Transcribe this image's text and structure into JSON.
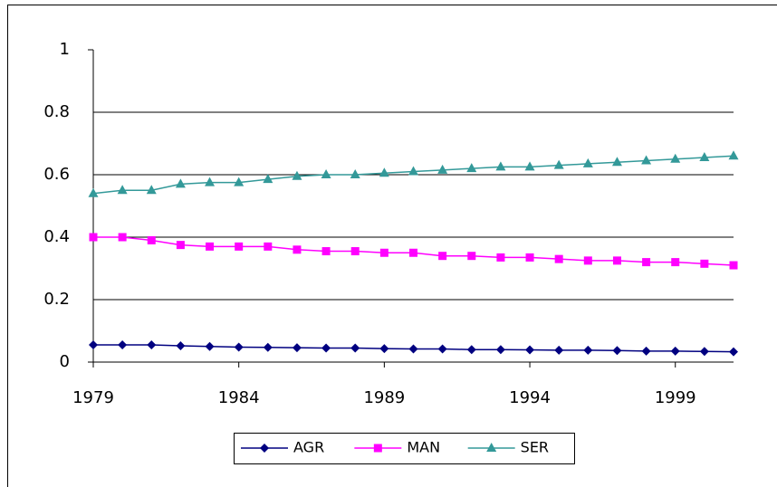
{
  "chart_data": {
    "type": "line",
    "x": [
      1979,
      1980,
      1981,
      1982,
      1983,
      1984,
      1985,
      1986,
      1987,
      1988,
      1989,
      1990,
      1991,
      1992,
      1993,
      1994,
      1995,
      1996,
      1997,
      1998,
      1999,
      2000,
      2001
    ],
    "series": [
      {
        "name": "AGR",
        "color": "#000080",
        "marker": "diamond",
        "values": [
          0.055,
          0.055,
          0.055,
          0.052,
          0.05,
          0.048,
          0.047,
          0.046,
          0.045,
          0.045,
          0.043,
          0.042,
          0.042,
          0.04,
          0.04,
          0.039,
          0.038,
          0.038,
          0.037,
          0.035,
          0.035,
          0.034,
          0.033
        ]
      },
      {
        "name": "MAN",
        "color": "#ff00ff",
        "marker": "square",
        "values": [
          0.4,
          0.4,
          0.39,
          0.375,
          0.37,
          0.37,
          0.37,
          0.36,
          0.355,
          0.355,
          0.35,
          0.35,
          0.34,
          0.34,
          0.335,
          0.335,
          0.33,
          0.325,
          0.325,
          0.32,
          0.32,
          0.315,
          0.31
        ]
      },
      {
        "name": "SER",
        "color": "#339999",
        "marker": "triangle",
        "values": [
          0.54,
          0.55,
          0.55,
          0.57,
          0.575,
          0.575,
          0.585,
          0.595,
          0.6,
          0.6,
          0.605,
          0.61,
          0.615,
          0.62,
          0.625,
          0.625,
          0.63,
          0.635,
          0.64,
          0.645,
          0.65,
          0.655,
          0.66
        ]
      }
    ],
    "xlim": [
      1979,
      2001
    ],
    "xticks": [
      1979,
      1984,
      1989,
      1994,
      1999
    ],
    "ylim": [
      0,
      1
    ],
    "yticks": [
      0,
      0.2,
      0.4,
      0.6,
      0.8,
      1
    ],
    "grid": true,
    "legend": "bottom"
  }
}
